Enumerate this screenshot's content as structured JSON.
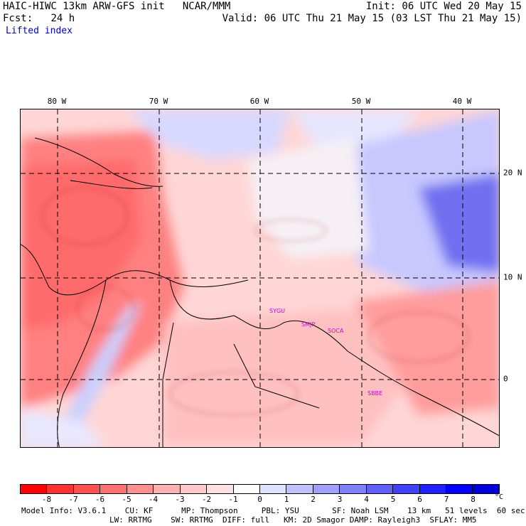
{
  "header": {
    "model_title": "HAIC-HIWC 13km ARW-GFS init",
    "center": "NCAR/MMM",
    "fcst_label": "Fcst:",
    "fcst_value": "24 h",
    "init": "Init: 06 UTC Wed 20 May 15",
    "valid": "Valid: 06 UTC Thu 21 May 15 (03 LST Thu 21 May 15)",
    "variable": "Lifted index"
  },
  "axes": {
    "lon_labels": [
      "80 W",
      "70 W",
      "60 W",
      "50 W",
      "40 W"
    ],
    "lat_labels": [
      "20 N",
      "10 N",
      "0"
    ]
  },
  "stations": [
    "SYGU",
    "SMJP",
    "SOCA",
    "SBBE"
  ],
  "colorbar": {
    "ticks": [
      "-8",
      "-7",
      "-6",
      "-5",
      "-4",
      "-3",
      "-2",
      "-1",
      "0",
      "1",
      "2",
      "3",
      "4",
      "5",
      "6",
      "7",
      "8"
    ],
    "unit": "°C",
    "colors": [
      "#ff0000",
      "#ff3030",
      "#ff5050",
      "#ff7070",
      "#ff9090",
      "#ffb0b0",
      "#ffc8c8",
      "#ffe0e0",
      "#ffffff",
      "#e0e0ff",
      "#c0c0ff",
      "#a0a0ff",
      "#8080ff",
      "#6060ff",
      "#4040ff",
      "#2020ff",
      "#0000ff",
      "#0000dd"
    ]
  },
  "model_info": {
    "line1": "Model Info: V3.6.1    CU: KF      MP: Thompson     PBL: YSU       SF: Noah LSM    13 km   51 levels  60 sec",
    "line2": "LW: RRTMG    SW: RRTMG  DIFF: full   KM: 2D Smagor DAMP: Rayleigh3  SFLAY: MM5"
  }
}
